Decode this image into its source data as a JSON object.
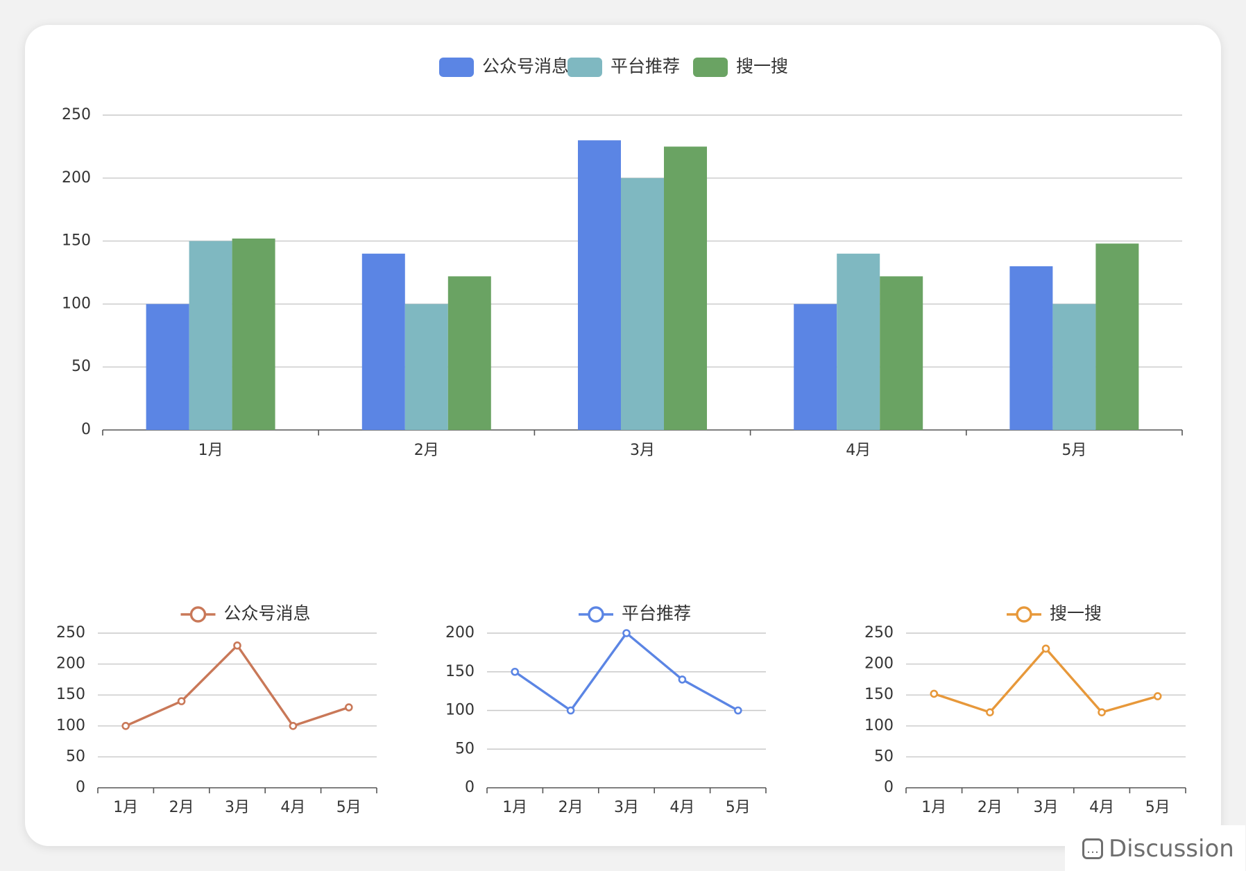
{
  "colors": {
    "bar_series": [
      "#5b85e4",
      "#7fb8c1",
      "#6aa363"
    ],
    "line_series": [
      "#c97858",
      "#5b85e4",
      "#e7983a"
    ]
  },
  "watermark": {
    "text": "Discussion",
    "icon": "chat-bubble-icon"
  },
  "chart_data": [
    {
      "type": "bar",
      "categories": [
        "1月",
        "2月",
        "3月",
        "4月",
        "5月"
      ],
      "series": [
        {
          "name": "公众号消息",
          "values": [
            100,
            140,
            230,
            100,
            130
          ]
        },
        {
          "name": "平台推荐",
          "values": [
            150,
            100,
            200,
            140,
            100
          ]
        },
        {
          "name": "搜一搜",
          "values": [
            152,
            122,
            225,
            122,
            148
          ]
        }
      ],
      "ylim": [
        0,
        250
      ],
      "yticks": [
        "0",
        "50",
        "100",
        "150",
        "200",
        "250"
      ],
      "grid": true,
      "legend": "top-center"
    },
    {
      "type": "line",
      "categories": [
        "1月",
        "2月",
        "3月",
        "4月",
        "5月"
      ],
      "series": [
        {
          "name": "公众号消息",
          "values": [
            100,
            140,
            230,
            100,
            130
          ]
        }
      ],
      "ylim": [
        0,
        250
      ],
      "yticks": [
        "0",
        "50",
        "100",
        "150",
        "200",
        "250"
      ],
      "grid": true,
      "legend": "top-center"
    },
    {
      "type": "line",
      "categories": [
        "1月",
        "2月",
        "3月",
        "4月",
        "5月"
      ],
      "series": [
        {
          "name": "平台推荐",
          "values": [
            150,
            100,
            200,
            140,
            100
          ]
        }
      ],
      "ylim": [
        0,
        200
      ],
      "yticks": [
        "0",
        "50",
        "100",
        "150",
        "200"
      ],
      "grid": true,
      "legend": "top-center"
    },
    {
      "type": "line",
      "categories": [
        "1月",
        "2月",
        "3月",
        "4月",
        "5月"
      ],
      "series": [
        {
          "name": "搜一搜",
          "values": [
            152,
            122,
            225,
            122,
            148
          ]
        }
      ],
      "ylim": [
        0,
        250
      ],
      "yticks": [
        "0",
        "50",
        "100",
        "150",
        "200",
        "250"
      ],
      "grid": true,
      "legend": "top-center"
    }
  ]
}
